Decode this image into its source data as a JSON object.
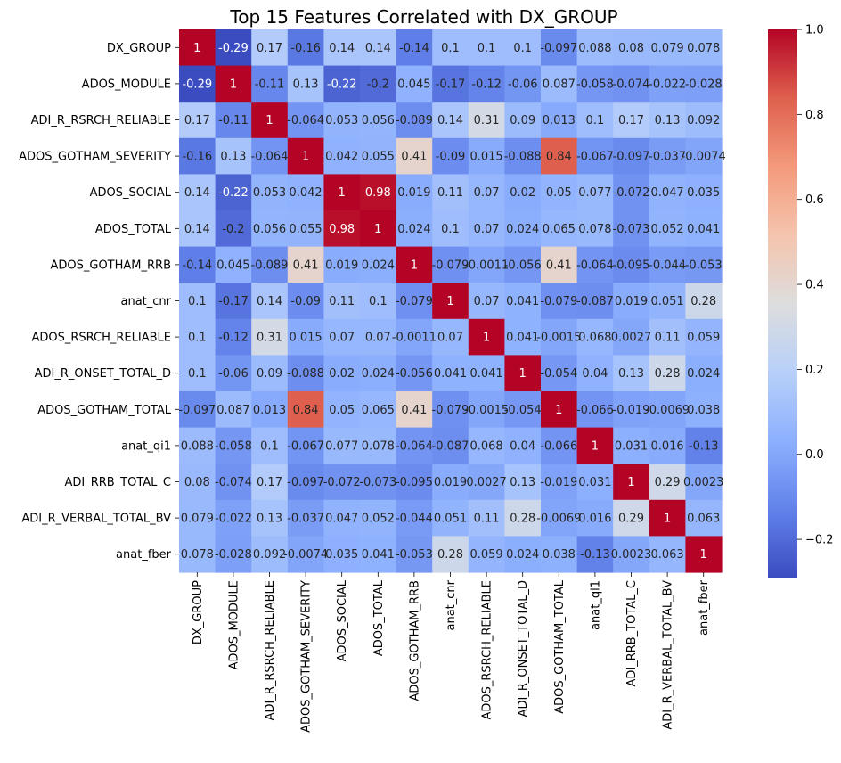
{
  "chart_data": {
    "type": "heatmap",
    "title": "Top 15 Features Correlated with DX_GROUP",
    "labels": [
      "DX_GROUP",
      "ADOS_MODULE",
      "ADI_R_RSRCH_RELIABLE",
      "ADOS_GOTHAM_SEVERITY",
      "ADOS_SOCIAL",
      "ADOS_TOTAL",
      "ADOS_GOTHAM_RRB",
      "anat_cnr",
      "ADOS_RSRCH_RELIABLE",
      "ADI_R_ONSET_TOTAL_D",
      "ADOS_GOTHAM_TOTAL",
      "anat_qi1",
      "ADI_RRB_TOTAL_C",
      "ADI_R_VERBAL_TOTAL_BV",
      "anat_fber"
    ],
    "values": [
      [
        1,
        -0.29,
        0.17,
        -0.16,
        0.14,
        0.14,
        -0.14,
        0.1,
        0.1,
        0.1,
        -0.097,
        0.088,
        0.08,
        0.079,
        0.078
      ],
      [
        -0.29,
        1,
        -0.11,
        0.13,
        -0.22,
        -0.2,
        0.045,
        -0.17,
        -0.12,
        -0.06,
        0.087,
        -0.058,
        -0.074,
        -0.022,
        -0.028
      ],
      [
        0.17,
        -0.11,
        1,
        -0.064,
        0.053,
        0.056,
        -0.089,
        0.14,
        0.31,
        0.09,
        0.013,
        0.1,
        0.17,
        0.13,
        0.092
      ],
      [
        -0.16,
        0.13,
        -0.064,
        1,
        0.042,
        0.055,
        0.41,
        -0.09,
        0.015,
        -0.088,
        0.84,
        -0.067,
        -0.097,
        -0.037,
        -0.0074
      ],
      [
        0.14,
        -0.22,
        0.053,
        0.042,
        1,
        0.98,
        0.019,
        0.11,
        0.07,
        0.02,
        0.05,
        0.077,
        -0.072,
        0.047,
        0.035
      ],
      [
        0.14,
        -0.2,
        0.056,
        0.055,
        0.98,
        1,
        0.024,
        0.1,
        0.07,
        0.024,
        0.065,
        0.078,
        -0.073,
        0.052,
        0.041
      ],
      [
        -0.14,
        0.045,
        -0.089,
        0.41,
        0.019,
        0.024,
        1,
        -0.079,
        -0.0011,
        -0.056,
        0.41,
        -0.064,
        -0.095,
        -0.044,
        -0.053
      ],
      [
        0.1,
        -0.17,
        0.14,
        -0.09,
        0.11,
        0.1,
        -0.079,
        1,
        0.07,
        0.041,
        -0.079,
        -0.087,
        0.019,
        0.051,
        0.28
      ],
      [
        0.1,
        -0.12,
        0.31,
        0.015,
        0.07,
        0.07,
        -0.0011,
        0.07,
        1,
        0.041,
        -0.0015,
        0.068,
        0.0027,
        0.11,
        0.059
      ],
      [
        0.1,
        -0.06,
        0.09,
        -0.088,
        0.02,
        0.024,
        -0.056,
        0.041,
        0.041,
        1,
        -0.054,
        0.04,
        0.13,
        0.28,
        0.024
      ],
      [
        -0.097,
        0.087,
        0.013,
        0.84,
        0.05,
        0.065,
        0.41,
        -0.079,
        -0.0015,
        -0.054,
        1,
        -0.066,
        -0.019,
        -0.0069,
        0.038
      ],
      [
        0.088,
        -0.058,
        0.1,
        -0.067,
        0.077,
        0.078,
        -0.064,
        -0.087,
        0.068,
        0.04,
        -0.066,
        1,
        0.031,
        0.016,
        -0.13
      ],
      [
        0.08,
        -0.074,
        0.17,
        -0.097,
        -0.072,
        -0.073,
        -0.095,
        0.019,
        0.0027,
        0.13,
        -0.019,
        0.031,
        1,
        0.29,
        0.0023
      ],
      [
        0.079,
        -0.022,
        0.13,
        -0.037,
        0.047,
        0.052,
        -0.044,
        0.051,
        0.11,
        0.28,
        -0.0069,
        0.016,
        0.29,
        1,
        0.063
      ],
      [
        0.078,
        -0.028,
        0.092,
        -0.0074,
        0.035,
        0.041,
        -0.053,
        0.28,
        0.059,
        0.024,
        0.038,
        -0.13,
        0.0023,
        0.063,
        1
      ]
    ],
    "colormap": "coolwarm",
    "vmin": -0.29,
    "vmax": 1.0,
    "colorbar_ticks": [
      {
        "value": 1.0,
        "label": "1.0"
      },
      {
        "value": 0.8,
        "label": "0.8"
      },
      {
        "value": 0.6,
        "label": "0.6"
      },
      {
        "value": 0.4,
        "label": "0.4"
      },
      {
        "value": 0.2,
        "label": "0.2"
      },
      {
        "value": 0.0,
        "label": "0.0"
      },
      {
        "value": -0.2,
        "label": "−0.2"
      }
    ],
    "annotations": true
  }
}
